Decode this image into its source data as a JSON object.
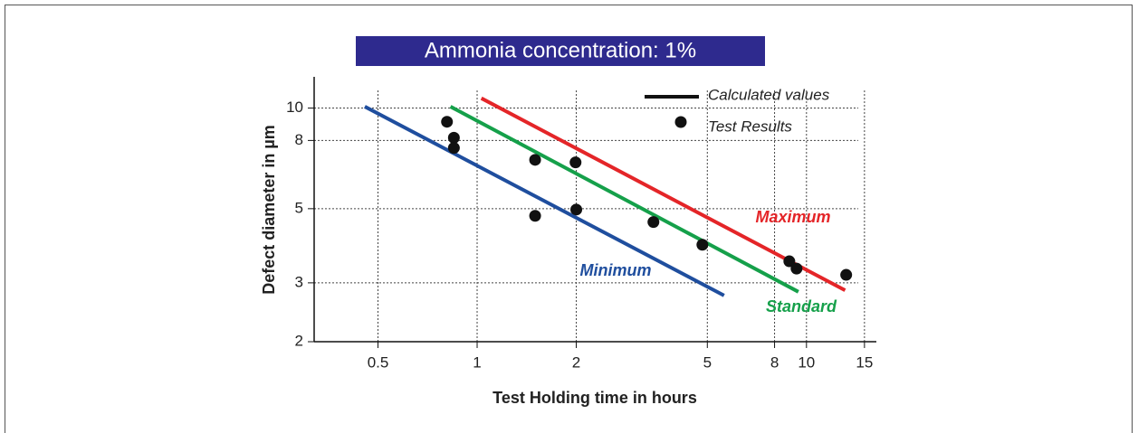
{
  "chart_data": {
    "type": "scatter",
    "title": "Ammonia concentration: 1%",
    "x_label": "Test Holding time in hours",
    "y_label": "Defect diameter in µm",
    "log_x": true,
    "log_y": true,
    "grid": true,
    "xlim": [
      0.32,
      16.3
    ],
    "ylim": [
      2,
      12.4
    ],
    "xticks": [
      0.5,
      1,
      2,
      5,
      8,
      10,
      15
    ],
    "yticks": [
      2,
      3,
      5,
      8,
      10
    ],
    "calculated_label": "Calculated values",
    "series": [
      {
        "name": "Minimum",
        "type": "line",
        "color": "#1f4e9e",
        "x": [
          0.456,
          5.62
        ],
        "values": [
          10.1,
          2.75
        ]
      },
      {
        "name": "Standard",
        "type": "line",
        "color": "#15a04a",
        "x": [
          0.83,
          9.45
        ],
        "values": [
          10.1,
          2.82
        ]
      },
      {
        "name": "Maximum",
        "type": "line",
        "color": "#e42528",
        "x": [
          1.03,
          13.1
        ],
        "values": [
          10.7,
          2.85
        ]
      },
      {
        "name": "Test Results",
        "type": "points",
        "color": "#111111",
        "x": [
          0.81,
          0.85,
          0.85,
          1.5,
          1.5,
          1.99,
          2,
          3.43,
          4.83,
          8.87,
          9.33,
          13.2
        ],
        "values": [
          9.1,
          8.15,
          7.6,
          7.0,
          4.76,
          6.88,
          4.97,
          4.56,
          3.9,
          3.48,
          3.31,
          3.17
        ]
      }
    ]
  }
}
